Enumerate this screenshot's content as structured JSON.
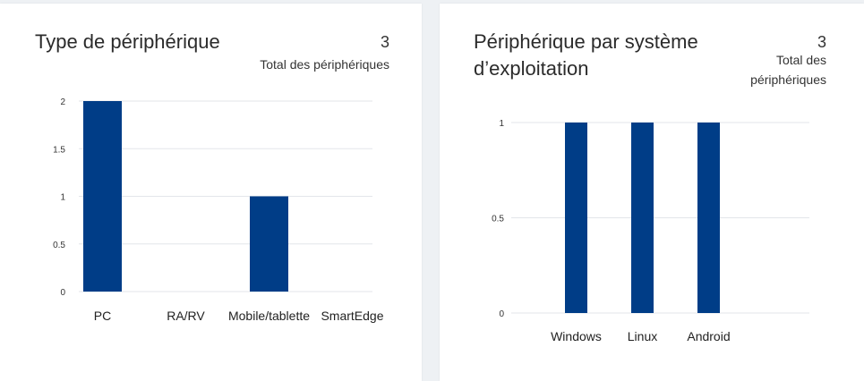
{
  "cards": [
    {
      "title": "Type de périphérique",
      "total_count": "3",
      "total_label": "Total des périphériques"
    },
    {
      "title_line1": "Périphérique par système",
      "title_line2": "d’exploitation",
      "total_count": "3",
      "total_label_line1": "Total des",
      "total_label_line2": "périphériques"
    }
  ],
  "bar_color": "#003d87",
  "chart_data": [
    {
      "type": "bar",
      "categories": [
        "PC",
        "RA/RV",
        "Mobile/tablette",
        "SmartEdge"
      ],
      "values": [
        2,
        0,
        1,
        0
      ],
      "ylim": [
        0,
        2
      ],
      "yticks": [
        "0",
        "0.5",
        "1",
        "1.5",
        "2"
      ],
      "grid": true
    },
    {
      "type": "bar",
      "categories": [
        "Windows",
        "Linux",
        "Android"
      ],
      "values": [
        1,
        1,
        1
      ],
      "ylim": [
        0,
        1
      ],
      "yticks": [
        "0",
        "0.5",
        "1"
      ],
      "grid": true
    }
  ]
}
